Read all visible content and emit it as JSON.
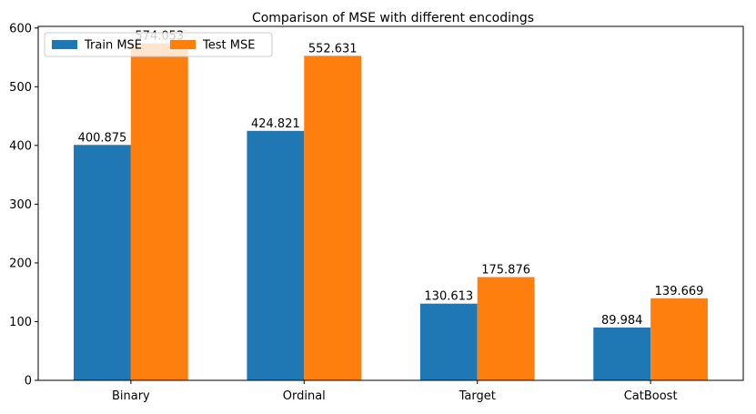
{
  "chart_data": {
    "type": "bar",
    "title": "Comparison of MSE with different encodings",
    "xlabel": "",
    "ylabel": "",
    "categories": [
      "Binary",
      "Ordinal",
      "Target",
      "CatBoost"
    ],
    "series": [
      {
        "name": "Train MSE",
        "color": "#1f77b4",
        "values": [
          400.875,
          424.821,
          130.613,
          89.984
        ],
        "labels": [
          "400.875",
          "424.821",
          "130.613",
          "89.984"
        ]
      },
      {
        "name": "Test MSE",
        "color": "#ff7f0e",
        "values": [
          574.053,
          552.631,
          175.876,
          139.669
        ],
        "labels": [
          "574.053",
          "552.631",
          "175.876",
          "139.669"
        ]
      }
    ],
    "ylim": [
      0,
      602.76
    ],
    "yticks": [
      0,
      100,
      200,
      300,
      400,
      500,
      600
    ],
    "ytick_labels": [
      "0",
      "100",
      "200",
      "300",
      "400",
      "500",
      "600"
    ],
    "grid": false,
    "legend": "upper-left"
  }
}
